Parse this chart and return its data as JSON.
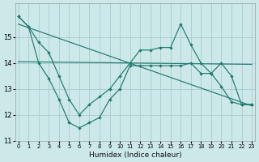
{
  "xlabel": "Humidex (Indice chaleur)",
  "background_color": "#cce8e8",
  "grid_color": "#aacccc",
  "line_color": "#1f7a6e",
  "xlim": [
    -0.3,
    23.3
  ],
  "ylim": [
    11.0,
    16.3
  ],
  "yticks": [
    11,
    12,
    13,
    14,
    15
  ],
  "xticks": [
    0,
    1,
    2,
    3,
    4,
    5,
    6,
    7,
    8,
    9,
    10,
    11,
    12,
    13,
    14,
    15,
    16,
    17,
    18,
    19,
    20,
    21,
    22,
    23
  ],
  "curve1_x": [
    0,
    1,
    2,
    3,
    4,
    5,
    6,
    7,
    8,
    9,
    10,
    11,
    12,
    13,
    14,
    15,
    16,
    17,
    18,
    19,
    20,
    21,
    22,
    23
  ],
  "curve1_y": [
    15.8,
    15.4,
    14.0,
    13.4,
    12.6,
    11.7,
    11.5,
    11.7,
    11.9,
    12.6,
    13.0,
    13.9,
    13.9,
    13.9,
    13.9,
    13.9,
    13.9,
    14.0,
    13.6,
    13.6,
    13.1,
    12.5,
    12.4,
    12.4
  ],
  "curve2_x": [
    0,
    1,
    2,
    3,
    4,
    5,
    6,
    7,
    8,
    9,
    10,
    11,
    12,
    13,
    14,
    15,
    16,
    17,
    18,
    19,
    20,
    21,
    22,
    23
  ],
  "curve2_y": [
    15.8,
    15.4,
    14.8,
    14.4,
    13.5,
    12.6,
    12.0,
    12.4,
    12.7,
    13.0,
    13.5,
    14.0,
    14.5,
    14.5,
    14.6,
    14.6,
    15.5,
    14.7,
    14.0,
    13.6,
    14.0,
    13.5,
    12.4,
    12.4
  ],
  "trend1_x": [
    0,
    23
  ],
  "trend1_y": [
    14.05,
    13.95
  ],
  "trend2_x": [
    0,
    23
  ],
  "trend2_y": [
    15.5,
    12.35
  ]
}
